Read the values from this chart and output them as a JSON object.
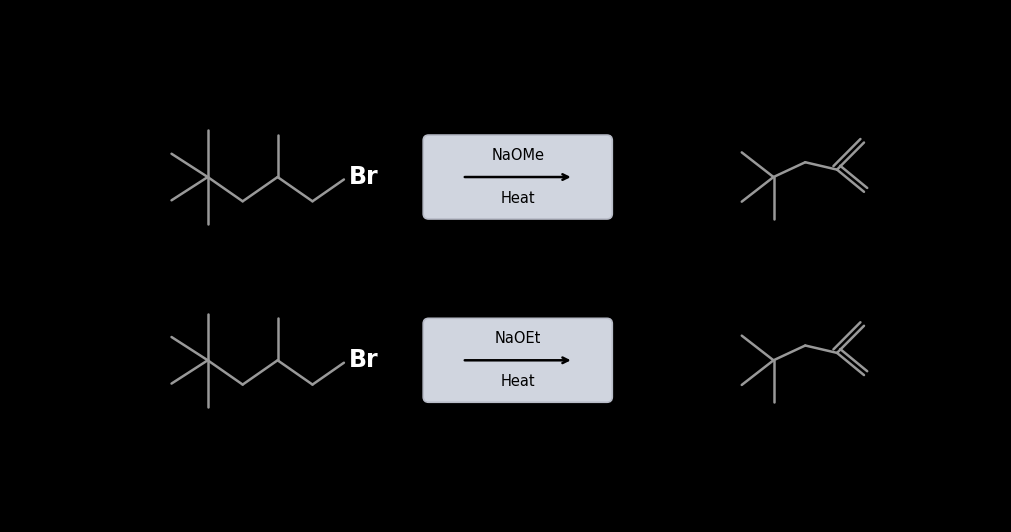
{
  "background_color": "#000000",
  "line_color": "#999999",
  "br_color": "#ffffff",
  "box_color": "#d0d5df",
  "box_edge_color": "#b8bcc8",
  "reaction1_reagent": "NaOMe",
  "reaction1_condition": "Heat",
  "reaction2_reagent": "NaOEt",
  "reaction2_condition": "Heat",
  "fig_width": 10.11,
  "fig_height": 5.32,
  "line_width": 1.8
}
